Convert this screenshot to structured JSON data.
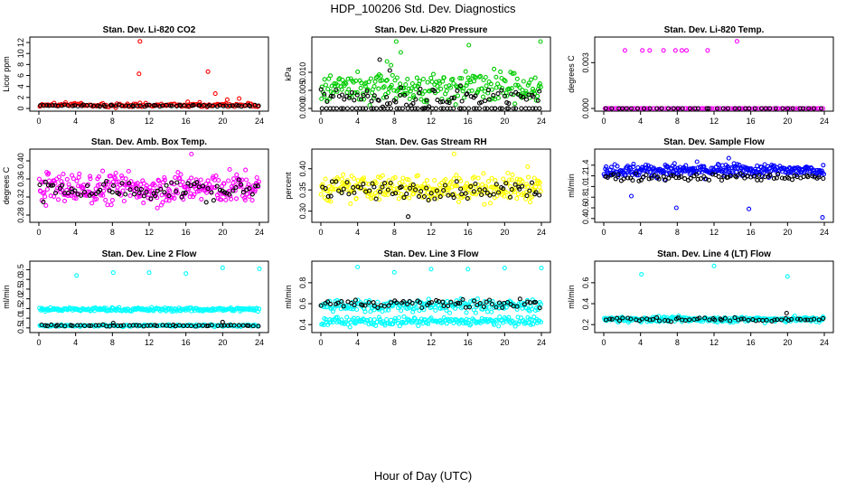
{
  "figure": {
    "title": "HDP_100206  Std. Dev. Diagnostics",
    "xlabel": "Hour of Day (UTC)"
  },
  "colors": {
    "black": "#000000",
    "red": "#ff0000",
    "green": "#00cc00",
    "magenta": "#ff00ff",
    "yellow": "#ffff00",
    "blue": "#0000ff",
    "cyan": "#00ffff"
  },
  "chart_data": [
    {
      "type": "scatter",
      "title": "Stan. Dev. Li-820 CO2",
      "ylabel": "Licor ppm",
      "xlim": [
        0,
        24
      ],
      "ylim": [
        0,
        12.5
      ],
      "xticks": [
        "0",
        "4",
        "8",
        "12",
        "16",
        "20",
        "24"
      ],
      "yticks": [
        "0",
        "2",
        "4",
        "6",
        "8",
        "10",
        "12"
      ],
      "ytick_values": [
        0,
        2,
        4,
        6,
        8,
        10,
        12
      ],
      "series": [
        {
          "name": "primary",
          "color": "red",
          "baseline": 0.6,
          "spread": 0.35,
          "count": 150,
          "outliers": [
            [
              11.0,
              12.2
            ],
            [
              10.9,
              6.3
            ],
            [
              18.4,
              6.7
            ],
            [
              19.2,
              2.7
            ],
            [
              20.5,
              1.6
            ],
            [
              21.8,
              1.8
            ],
            [
              17.5,
              1.1
            ],
            [
              16.2,
              1.2
            ]
          ]
        },
        {
          "name": "secondary",
          "color": "black",
          "baseline": 0.5,
          "spread": 0.15,
          "count": 70,
          "outliers": []
        }
      ]
    },
    {
      "type": "scatter",
      "title": "Stan. Dev. Li-820 Pressure",
      "ylabel": "kPa",
      "xlim": [
        0,
        24
      ],
      "ylim": [
        0,
        0.019
      ],
      "xticks": [
        "0",
        "4",
        "8",
        "12",
        "16",
        "20",
        "24"
      ],
      "yticks": [
        "0.000",
        "0.005",
        "0.010"
      ],
      "ytick_values": [
        0,
        0.005,
        0.01
      ],
      "series": [
        {
          "name": "primary",
          "color": "green",
          "baseline": 0.006,
          "spread": 0.004,
          "count": 240,
          "outliers": [
            [
              8.2,
              0.0185
            ],
            [
              23.9,
              0.0185
            ],
            [
              16.1,
              0.0175
            ],
            [
              8.7,
              0.0155
            ],
            [
              7.2,
              0.013
            ]
          ]
        },
        {
          "name": "secondary",
          "color": "black",
          "baseline": 0.003,
          "spread": 0.003,
          "count": 80,
          "outliers": [
            [
              6.4,
              0.0135
            ],
            [
              7.5,
              0.0105
            ]
          ]
        },
        {
          "name": "floor",
          "color": "black",
          "baseline": 0.0,
          "spread": 0.0,
          "count": 60,
          "outliers": []
        }
      ]
    },
    {
      "type": "scatter",
      "title": "Stan. Dev. Li-820 Temp.",
      "ylabel": "degrees C",
      "xlim": [
        0,
        24
      ],
      "ylim": [
        0,
        0.0045
      ],
      "xticks": [
        "0",
        "4",
        "8",
        "12",
        "16",
        "20",
        "24"
      ],
      "yticks": [
        "0.000",
        "0.003"
      ],
      "ytick_values": [
        0,
        0.003
      ],
      "series": [
        {
          "name": "primary",
          "color": "magenta",
          "baseline": 0.0,
          "spread": 0.0,
          "count": 110,
          "outliers": [
            [
              2.3,
              0.0038
            ],
            [
              4.2,
              0.0038
            ],
            [
              5.0,
              0.0038
            ],
            [
              6.5,
              0.0038
            ],
            [
              7.8,
              0.0038
            ],
            [
              8.5,
              0.0038
            ],
            [
              9.0,
              0.0038
            ],
            [
              11.3,
              0.0038
            ],
            [
              14.5,
              0.0044
            ]
          ]
        },
        {
          "name": "secondary",
          "color": "black",
          "baseline": 0.0,
          "spread": 0.0,
          "count": 40,
          "outliers": []
        }
      ]
    },
    {
      "type": "scatter",
      "title": "Stan. Dev. Amb. Box Temp.",
      "ylabel": "degrees C",
      "xlim": [
        0,
        24
      ],
      "ylim": [
        0.27,
        0.42
      ],
      "xticks": [
        "0",
        "4",
        "8",
        "12",
        "16",
        "20",
        "24"
      ],
      "yticks": [
        "0.28",
        "0.32",
        "0.36",
        "0.40"
      ],
      "ytick_values": [
        0.28,
        0.32,
        0.36,
        0.4
      ],
      "series": [
        {
          "name": "primary",
          "color": "magenta",
          "baseline": 0.34,
          "spread": 0.035,
          "count": 300,
          "outliers": [
            [
              16.6,
              0.415
            ]
          ]
        },
        {
          "name": "secondary",
          "color": "black",
          "baseline": 0.335,
          "spread": 0.022,
          "count": 80,
          "outliers": []
        }
      ]
    },
    {
      "type": "scatter",
      "title": "Stan. Dev. Gas Stream RH",
      "ylabel": "percent",
      "xlim": [
        0,
        24
      ],
      "ylim": [
        0.28,
        0.44
      ],
      "xticks": [
        "0",
        "4",
        "8",
        "12",
        "16",
        "20",
        "24"
      ],
      "yticks": [
        "0.30",
        "0.35",
        "0.40"
      ],
      "ytick_values": [
        0.3,
        0.35,
        0.4
      ],
      "series": [
        {
          "name": "primary",
          "color": "yellow",
          "baseline": 0.355,
          "spread": 0.03,
          "count": 300,
          "outliers": [
            [
              14.5,
              0.435
            ],
            [
              22.5,
              0.405
            ]
          ]
        },
        {
          "name": "secondary",
          "color": "black",
          "baseline": 0.35,
          "spread": 0.02,
          "count": 80,
          "outliers": [
            [
              9.5,
              0.287
            ]
          ]
        }
      ]
    },
    {
      "type": "scatter",
      "title": "Stan. Dev. Sample Flow",
      "ylabel": "ml/min",
      "xlim": [
        0,
        24
      ],
      "ylim": [
        0.38,
        1.65
      ],
      "xticks": [
        "0",
        "4",
        "8",
        "12",
        "16",
        "20",
        "24"
      ],
      "yticks": [
        "0.4",
        "0.6",
        "0.8",
        "1.0",
        "1.2",
        "1.4"
      ],
      "ytick_values": [
        0.4,
        0.6,
        0.8,
        1.0,
        1.2,
        1.4
      ],
      "series": [
        {
          "name": "primary",
          "color": "blue",
          "baseline": 1.3,
          "spread": 0.12,
          "count": 320,
          "outliers": [
            [
              7.9,
              0.6
            ],
            [
              15.8,
              0.58
            ],
            [
              23.8,
              0.42
            ],
            [
              3.0,
              0.82
            ],
            [
              13.6,
              1.53
            ]
          ]
        },
        {
          "name": "secondary",
          "color": "black",
          "baseline": 1.18,
          "spread": 0.07,
          "count": 80,
          "outliers": []
        }
      ]
    },
    {
      "type": "scatter",
      "title": "Stan. Dev. Line 2 Flow",
      "ylabel": "ml/min",
      "xlim": [
        0,
        24
      ],
      "ylim": [
        0.4,
        3.8
      ],
      "xticks": [
        "0",
        "4",
        "8",
        "12",
        "16",
        "20",
        "24"
      ],
      "yticks": [
        "0.5",
        "1.0",
        "1.5",
        "2.0",
        "2.5",
        "3.0",
        "3.5"
      ],
      "ytick_values": [
        0.5,
        1.0,
        1.5,
        2.0,
        2.5,
        3.0,
        3.5
      ],
      "series": [
        {
          "name": "upper",
          "color": "cyan",
          "baseline": 1.45,
          "spread": 0.1,
          "count": 220,
          "outliers": [
            [
              4.1,
              3.2
            ],
            [
              8.1,
              3.35
            ],
            [
              12.0,
              3.35
            ],
            [
              16.0,
              3.3
            ],
            [
              20.0,
              3.6
            ],
            [
              24.0,
              3.55
            ]
          ]
        },
        {
          "name": "lower",
          "color": "cyan",
          "baseline": 0.62,
          "spread": 0.05,
          "count": 180,
          "outliers": []
        },
        {
          "name": "secondary",
          "color": "black",
          "baseline": 0.62,
          "spread": 0.04,
          "count": 60,
          "outliers": [
            [
              8.1,
              0.75
            ],
            [
              20.0,
              0.8
            ]
          ]
        }
      ]
    },
    {
      "type": "scatter",
      "title": "Stan. Dev. Line 3 Flow",
      "ylabel": "ml/min",
      "xlim": [
        0,
        24
      ],
      "ylim": [
        0.35,
        0.98
      ],
      "xticks": [
        "0",
        "4",
        "8",
        "12",
        "16",
        "20",
        "24"
      ],
      "yticks": [
        "0.4",
        "0.6",
        "0.8"
      ],
      "ytick_values": [
        0.4,
        0.6,
        0.8
      ],
      "series": [
        {
          "name": "upper",
          "color": "cyan",
          "baseline": 0.58,
          "spread": 0.06,
          "count": 220,
          "outliers": [
            [
              4.0,
              0.95
            ],
            [
              8.0,
              0.9
            ],
            [
              12.0,
              0.93
            ],
            [
              16.0,
              0.93
            ],
            [
              20.0,
              0.94
            ],
            [
              24.0,
              0.94
            ]
          ]
        },
        {
          "name": "lower",
          "color": "cyan",
          "baseline": 0.43,
          "spread": 0.04,
          "count": 200,
          "outliers": []
        },
        {
          "name": "secondary",
          "color": "black",
          "baseline": 0.6,
          "spread": 0.04,
          "count": 70,
          "outliers": []
        }
      ]
    },
    {
      "type": "scatter",
      "title": "Stan. Dev. Line 4 (LT) Flow",
      "ylabel": "ml/min",
      "xlim": [
        0,
        24
      ],
      "ylim": [
        0.15,
        0.78
      ],
      "xticks": [
        "0",
        "4",
        "8",
        "12",
        "16",
        "20",
        "24"
      ],
      "yticks": [
        "0.2",
        "0.4",
        "0.6"
      ],
      "ytick_values": [
        0.2,
        0.4,
        0.6
      ],
      "series": [
        {
          "name": "primary",
          "color": "cyan",
          "baseline": 0.25,
          "spread": 0.025,
          "count": 280,
          "outliers": [
            [
              4.1,
              0.68
            ],
            [
              12.0,
              0.76
            ],
            [
              20.0,
              0.66
            ]
          ]
        },
        {
          "name": "secondary",
          "color": "black",
          "baseline": 0.25,
          "spread": 0.02,
          "count": 60,
          "outliers": [
            [
              19.9,
              0.31
            ]
          ]
        }
      ]
    }
  ]
}
